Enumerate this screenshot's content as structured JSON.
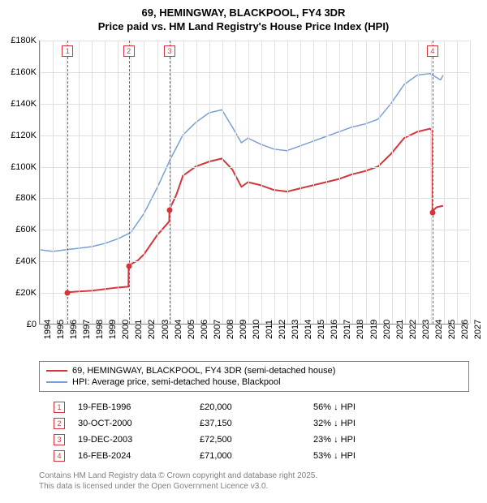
{
  "title": {
    "line1": "69, HEMINGWAY, BLACKPOOL, FY4 3DR",
    "line2": "Price paid vs. HM Land Registry's House Price Index (HPI)"
  },
  "chart": {
    "type": "line",
    "background_color": "#ffffff",
    "grid_color": "#e0e0e0",
    "axis_color": "#808080",
    "label_fontsize": 11,
    "x_axis": {
      "min": 1994,
      "max": 2027,
      "ticks": [
        1994,
        1995,
        1996,
        1997,
        1998,
        1999,
        2000,
        2001,
        2002,
        2003,
        2004,
        2005,
        2006,
        2007,
        2008,
        2009,
        2010,
        2011,
        2012,
        2013,
        2014,
        2015,
        2016,
        2017,
        2018,
        2019,
        2020,
        2021,
        2022,
        2023,
        2024,
        2025,
        2026,
        2027
      ]
    },
    "y_axis": {
      "min": 0,
      "max": 180000,
      "ticks": [
        0,
        20000,
        40000,
        60000,
        80000,
        100000,
        120000,
        140000,
        160000,
        180000
      ],
      "tick_labels": [
        "£0",
        "£20K",
        "£40K",
        "£60K",
        "£80K",
        "£100K",
        "£120K",
        "£140K",
        "£160K",
        "£180K"
      ]
    },
    "sale_events": [
      {
        "idx": 1,
        "year": 1996.13,
        "price": 20000
      },
      {
        "idx": 2,
        "year": 2000.83,
        "price": 37150
      },
      {
        "idx": 3,
        "year": 2003.96,
        "price": 72500
      },
      {
        "idx": 4,
        "year": 2024.13,
        "price": 71000
      }
    ],
    "series": [
      {
        "name": "property",
        "label": "69, HEMINGWAY, BLACKPOOL, FY4 3DR (semi-detached house)",
        "color": "#d4343a",
        "line_width": 2,
        "points": [
          [
            1996.13,
            20000
          ],
          [
            1997,
            20500
          ],
          [
            1998,
            21000
          ],
          [
            1999,
            22000
          ],
          [
            2000,
            23000
          ],
          [
            2000.82,
            23500
          ],
          [
            2000.83,
            37150
          ],
          [
            2001.5,
            40000
          ],
          [
            2002,
            44000
          ],
          [
            2003,
            56000
          ],
          [
            2003.95,
            65000
          ],
          [
            2003.96,
            72500
          ],
          [
            2004.5,
            82000
          ],
          [
            2005,
            94000
          ],
          [
            2006,
            100000
          ],
          [
            2007,
            103000
          ],
          [
            2008,
            105000
          ],
          [
            2008.8,
            98000
          ],
          [
            2009.5,
            87000
          ],
          [
            2010,
            90000
          ],
          [
            2011,
            88000
          ],
          [
            2012,
            85000
          ],
          [
            2013,
            84000
          ],
          [
            2014,
            86000
          ],
          [
            2015,
            88000
          ],
          [
            2016,
            90000
          ],
          [
            2017,
            92000
          ],
          [
            2018,
            95000
          ],
          [
            2019,
            97000
          ],
          [
            2020,
            100000
          ],
          [
            2021,
            108000
          ],
          [
            2022,
            118000
          ],
          [
            2023,
            122000
          ],
          [
            2024,
            124000
          ],
          [
            2024.12,
            123000
          ],
          [
            2024.13,
            71000
          ],
          [
            2024.5,
            74000
          ],
          [
            2025,
            75000
          ]
        ]
      },
      {
        "name": "hpi",
        "label": "HPI: Average price, semi-detached house, Blackpool",
        "color": "#7a9fd4",
        "line_width": 1.5,
        "points": [
          [
            1994,
            47000
          ],
          [
            1995,
            46000
          ],
          [
            1996,
            47000
          ],
          [
            1997,
            48000
          ],
          [
            1998,
            49000
          ],
          [
            1999,
            51000
          ],
          [
            2000,
            54000
          ],
          [
            2001,
            58000
          ],
          [
            2002,
            70000
          ],
          [
            2003,
            86000
          ],
          [
            2004,
            104000
          ],
          [
            2005,
            120000
          ],
          [
            2006,
            128000
          ],
          [
            2007,
            134000
          ],
          [
            2008,
            136000
          ],
          [
            2008.8,
            125000
          ],
          [
            2009.5,
            115000
          ],
          [
            2010,
            118000
          ],
          [
            2011,
            114000
          ],
          [
            2012,
            111000
          ],
          [
            2013,
            110000
          ],
          [
            2014,
            113000
          ],
          [
            2015,
            116000
          ],
          [
            2016,
            119000
          ],
          [
            2017,
            122000
          ],
          [
            2018,
            125000
          ],
          [
            2019,
            127000
          ],
          [
            2020,
            130000
          ],
          [
            2021,
            140000
          ],
          [
            2022,
            152000
          ],
          [
            2023,
            158000
          ],
          [
            2024,
            159000
          ],
          [
            2024.8,
            155000
          ],
          [
            2025,
            158000
          ]
        ]
      }
    ]
  },
  "legend": {
    "border_color": "#808080"
  },
  "sales_table": {
    "rows": [
      {
        "idx": "1",
        "date": "19-FEB-1996",
        "price": "£20,000",
        "delta": "56% ↓ HPI"
      },
      {
        "idx": "2",
        "date": "30-OCT-2000",
        "price": "£37,150",
        "delta": "32% ↓ HPI"
      },
      {
        "idx": "3",
        "date": "19-DEC-2003",
        "price": "£72,500",
        "delta": "23% ↓ HPI"
      },
      {
        "idx": "4",
        "date": "16-FEB-2024",
        "price": "£71,000",
        "delta": "53% ↓ HPI"
      }
    ]
  },
  "footer": {
    "line1": "Contains HM Land Registry data © Crown copyright and database right 2025.",
    "line2": "This data is licensed under the Open Government Licence v3.0."
  }
}
